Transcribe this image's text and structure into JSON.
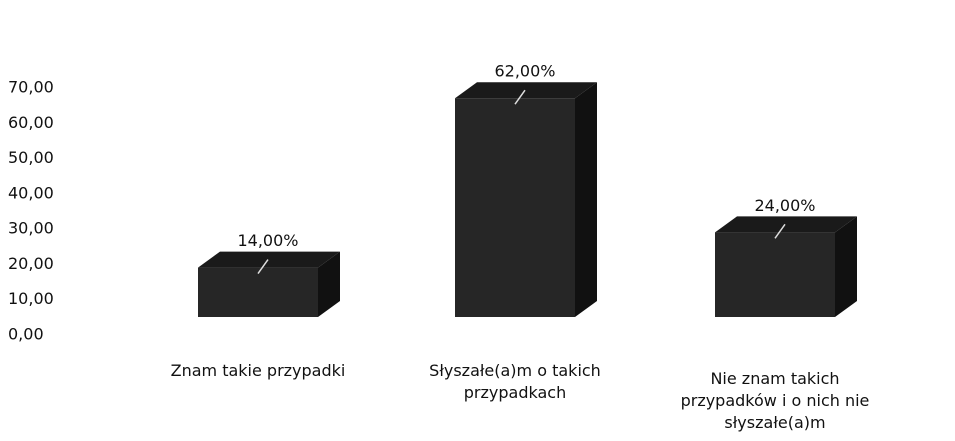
{
  "chart_data": {
    "type": "bar3d",
    "categories": [
      "Znam takie przypadki",
      "Słyszałe(a)m o takich przypadkach",
      "Nie znam takich przypadków i o nich nie słyszałe(a)m"
    ],
    "values": [
      14,
      62,
      24
    ],
    "value_labels": [
      "14,00%",
      "62,00%",
      "24,00%"
    ],
    "color": "#262626",
    "ylim": [
      0,
      70
    ],
    "yticks": [
      {
        "value": 0,
        "label": "0,00"
      },
      {
        "value": 10,
        "label": "10,00"
      },
      {
        "value": 20,
        "label": "20,00"
      },
      {
        "value": 30,
        "label": "30,00"
      },
      {
        "value": 40,
        "label": "40,00"
      },
      {
        "value": 50,
        "label": "50,00"
      },
      {
        "value": 60,
        "label": "60,00"
      },
      {
        "value": 70,
        "label": "70,00"
      }
    ]
  }
}
